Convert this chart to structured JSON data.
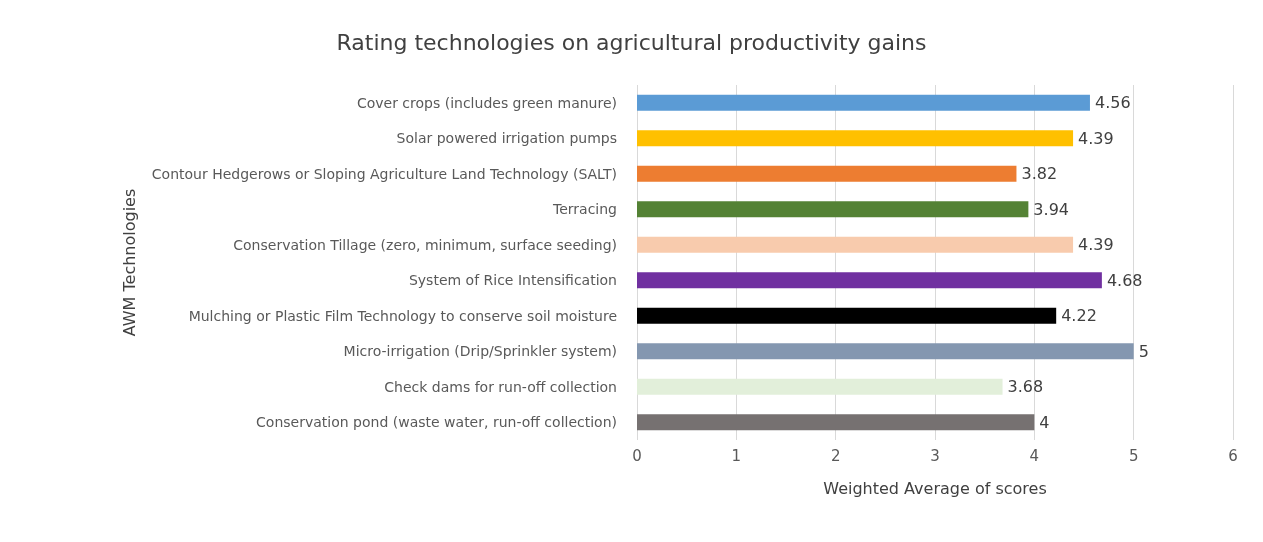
{
  "chart_data": {
    "type": "bar",
    "orientation": "horizontal",
    "title": "Rating technologies on agricultural productivity gains",
    "xlabel": "Weighted Average of scores",
    "ylabel": "AWM Technologies",
    "categories": [
      "Cover crops (includes green manure)",
      "Solar powered irrigation pumps",
      "Contour Hedgerows or Sloping Agriculture Land Technology (SALT)",
      "Terracing",
      "Conservation Tillage (zero, minimum, surface seeding)",
      "System of Rice Intensification",
      "Mulching or Plastic Film Technology to conserve soil moisture",
      "Micro-irrigation (Drip/Sprinkler system)",
      "Check dams for run-off collection",
      "Conservation pond (waste water, run-off collection)"
    ],
    "values": [
      4.56,
      4.39,
      3.82,
      3.94,
      4.39,
      4.68,
      4.22,
      5,
      3.68,
      4
    ],
    "colors": [
      "#5b9bd5",
      "#ffc000",
      "#ed7d31",
      "#548235",
      "#f8cbad",
      "#7030a0",
      "#000000",
      "#8497b0",
      "#e2efda",
      "#767171"
    ],
    "xlim": [
      0,
      6
    ],
    "xticks": [
      0,
      1,
      2,
      3,
      4,
      5,
      6
    ],
    "grid": "x",
    "data_labels": true
  }
}
